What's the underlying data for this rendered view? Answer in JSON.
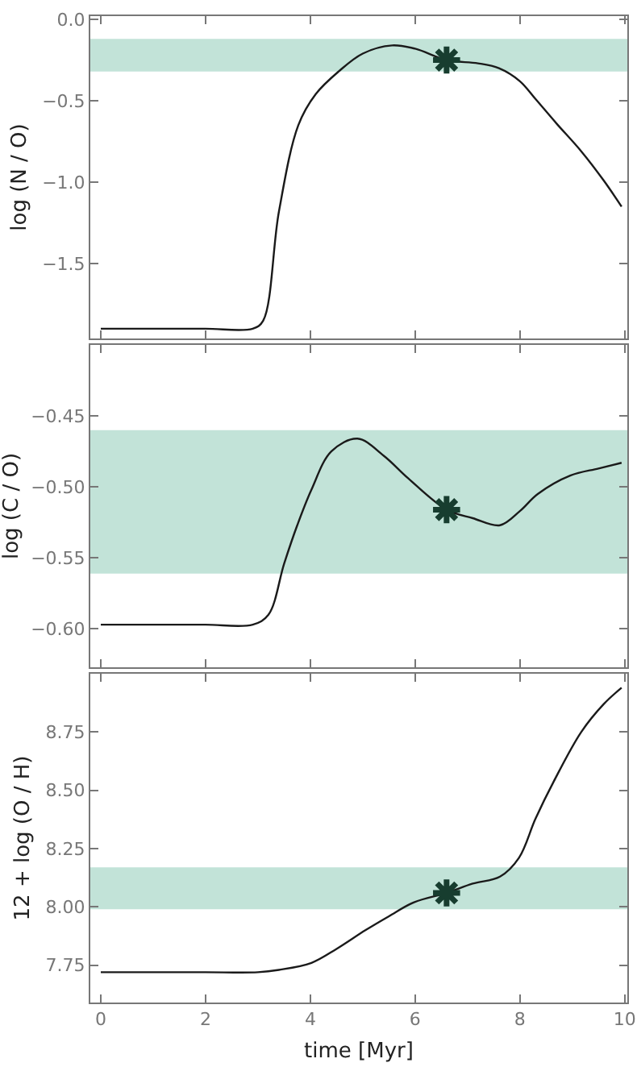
{
  "chart_data": [
    {
      "type": "line",
      "ylabel": "log (N / O)",
      "xlim": [
        -0.2,
        10.05
      ],
      "xticks": [
        0,
        2,
        4,
        6,
        8,
        10
      ],
      "ylim": [
        -1.96,
        0.02
      ],
      "yticks": [
        {
          "value": -1.5,
          "label": "−1.5"
        },
        {
          "value": -1,
          "label": "−1.0"
        },
        {
          "value": -0.5,
          "label": "−0.5"
        },
        {
          "value": 0,
          "label": "0.0"
        }
      ],
      "tick_labels": "y",
      "grid": false,
      "bands": [
        {
          "axis": "y",
          "from": -0.32,
          "to": -0.12,
          "color": "#c2e3d8"
        }
      ],
      "series": [
        {
          "type": "line",
          "color": "#1a1a1a",
          "x": [
            0,
            1,
            2,
            2.9,
            3.1,
            3.4,
            3.77,
            4.1,
            4.54,
            5,
            5.56,
            6,
            6.6,
            7.2,
            7.6,
            8,
            8.3,
            8.7,
            9.17,
            9.6,
            9.94
          ],
          "values": [
            -1.9,
            -1.9,
            -1.9,
            -1.9,
            -1.85,
            -1.18,
            -0.65,
            -0.46,
            -0.32,
            -0.21,
            -0.16,
            -0.18,
            -0.25,
            -0.27,
            -0.3,
            -0.38,
            -0.49,
            -0.64,
            -0.81,
            -0.99,
            -1.15
          ]
        },
        {
          "type": "scatter",
          "marker": "cross",
          "color": "#173d2f",
          "x": [
            6.6
          ],
          "values": [
            -0.25
          ]
        }
      ]
    },
    {
      "type": "line",
      "ylabel": "log (C / O)",
      "xlim": [
        -0.2,
        10.05
      ],
      "xticks": [
        0,
        2,
        4,
        6,
        8,
        10
      ],
      "ylim": [
        -0.627,
        -0.4
      ],
      "yticks": [
        {
          "value": -0.6,
          "label": "−0.60"
        },
        {
          "value": -0.55,
          "label": "−0.55"
        },
        {
          "value": -0.5,
          "label": "−0.50"
        },
        {
          "value": -0.45,
          "label": "−0.45"
        }
      ],
      "tick_labels": "y",
      "grid": false,
      "bands": [
        {
          "axis": "y",
          "from": -0.561,
          "to": -0.46,
          "color": "#c2e3d8"
        }
      ],
      "series": [
        {
          "type": "line",
          "color": "#1a1a1a",
          "x": [
            0,
            1,
            2,
            2.9,
            3.2,
            3.5,
            3.75,
            4.02,
            4.4,
            4.9,
            5.4,
            5.87,
            6.6,
            7.1,
            7.62,
            8,
            8.34,
            8.96,
            9.5,
            9.94
          ],
          "values": [
            -0.597,
            -0.597,
            -0.597,
            -0.597,
            -0.59,
            -0.554,
            -0.527,
            -0.502,
            -0.475,
            -0.466,
            -0.478,
            -0.494,
            -0.516,
            -0.522,
            -0.527,
            -0.517,
            -0.505,
            -0.492,
            -0.487,
            -0.483
          ]
        },
        {
          "type": "scatter",
          "marker": "cross",
          "color": "#173d2f",
          "x": [
            6.6
          ],
          "values": [
            -0.516
          ]
        }
      ]
    },
    {
      "type": "line",
      "ylabel": "12 + log (O / H)",
      "xlabel": "time [Myr]",
      "xlim": [
        -0.2,
        10.05
      ],
      "xticks": [
        0,
        2,
        4,
        6,
        8,
        10
      ],
      "ylim": [
        7.59,
        9.0
      ],
      "yticks": [
        {
          "value": 7.75,
          "label": "7.75"
        },
        {
          "value": 8,
          "label": "8.00"
        },
        {
          "value": 8.25,
          "label": "8.25"
        },
        {
          "value": 8.5,
          "label": "8.50"
        },
        {
          "value": 8.75,
          "label": "8.75"
        }
      ],
      "grid": false,
      "bands": [
        {
          "axis": "y",
          "from": 7.99,
          "to": 8.17,
          "color": "#c2e3d8"
        }
      ],
      "series": [
        {
          "type": "line",
          "color": "#1a1a1a",
          "x": [
            0,
            1,
            2,
            3,
            3.4,
            4.02,
            4.5,
            5.05,
            5.5,
            5.98,
            6.6,
            7.1,
            7.62,
            7.98,
            8.3,
            8.65,
            9.17,
            9.6,
            9.94
          ],
          "values": [
            7.72,
            7.72,
            7.72,
            7.72,
            7.73,
            7.76,
            7.82,
            7.9,
            7.96,
            8.02,
            8.06,
            8.1,
            8.13,
            8.21,
            8.38,
            8.54,
            8.75,
            8.87,
            8.94
          ]
        },
        {
          "type": "scatter",
          "marker": "cross",
          "color": "#173d2f",
          "x": [
            6.6
          ],
          "values": [
            8.06
          ]
        }
      ]
    }
  ]
}
